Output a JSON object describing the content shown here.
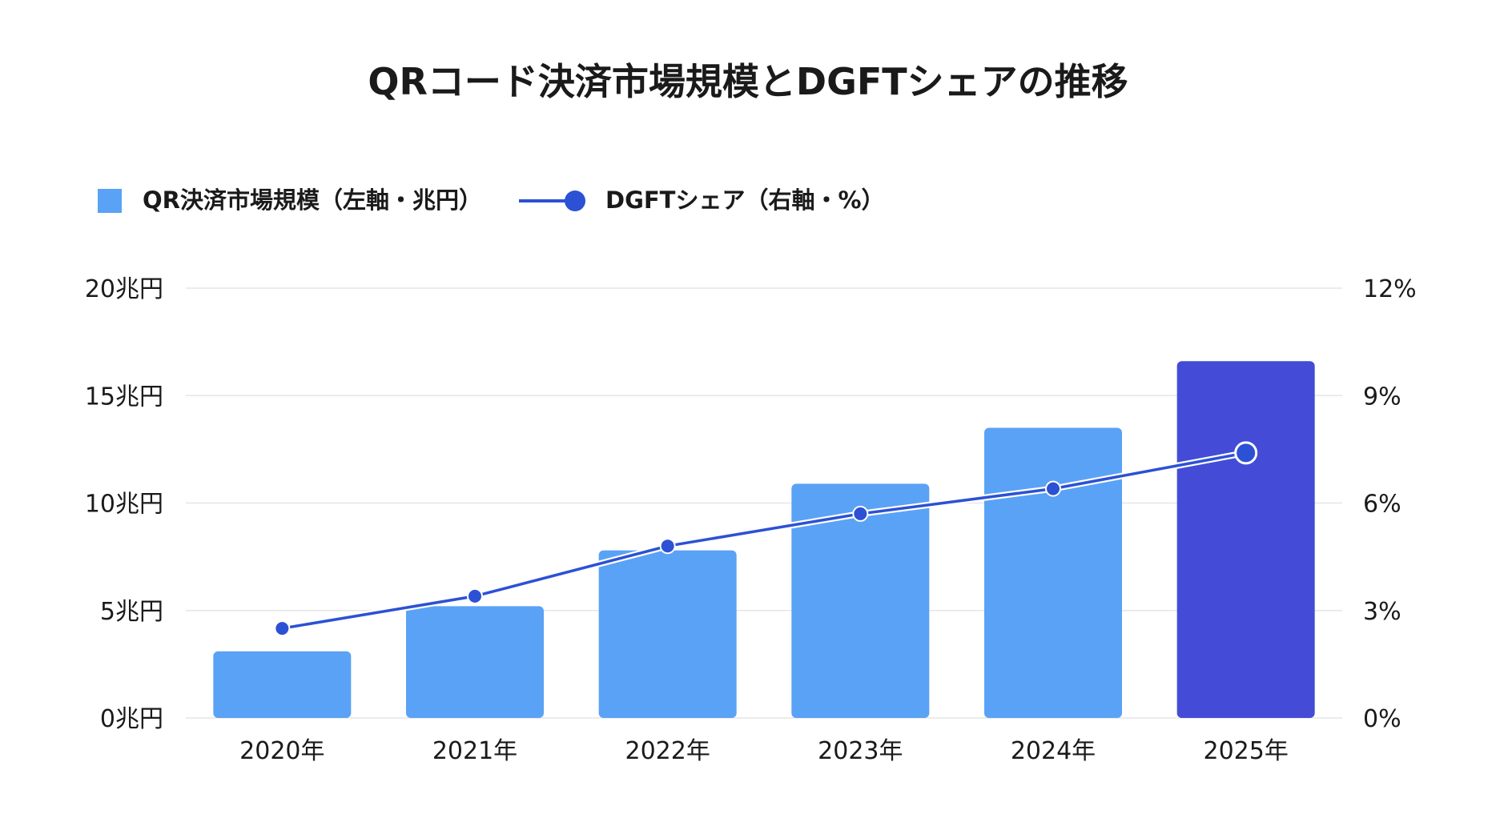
{
  "chart_data": {
    "type": "bar",
    "title": "QRコード決済市場規模とDGFTシェアの推移",
    "categories": [
      "2020年",
      "2021年",
      "2022年",
      "2023年",
      "2024年",
      "2025年"
    ],
    "series": [
      {
        "name": "QR決済市場規模（左軸・兆円）",
        "type": "bar",
        "axis": "left",
        "values": [
          3.1,
          5.2,
          7.8,
          10.9,
          13.5,
          16.6
        ],
        "highlight_index": 5
      },
      {
        "name": "DGFTシェア（右軸・%）",
        "type": "line",
        "axis": "right",
        "values": [
          2.5,
          3.4,
          4.8,
          5.7,
          6.4,
          7.4
        ]
      }
    ],
    "y_left": {
      "ylim": [
        0,
        20
      ],
      "ticks": [
        0,
        5,
        10,
        15,
        20
      ],
      "tick_labels": [
        "0兆円",
        "5兆円",
        "10兆円",
        "15兆円",
        "20兆円"
      ]
    },
    "y_right": {
      "ylim": [
        0,
        12
      ],
      "ticks": [
        0,
        3,
        6,
        9,
        12
      ],
      "tick_labels": [
        "0%",
        "3%",
        "6%",
        "9%",
        "12%"
      ]
    },
    "grid": true,
    "legend_position": "top-left",
    "colors": {
      "bar": "#5aa2f5",
      "bar_highlight": "#434bd7",
      "line": "#2c51d4",
      "grid": "#e6e6e6",
      "text": "#1a1a1a"
    }
  }
}
